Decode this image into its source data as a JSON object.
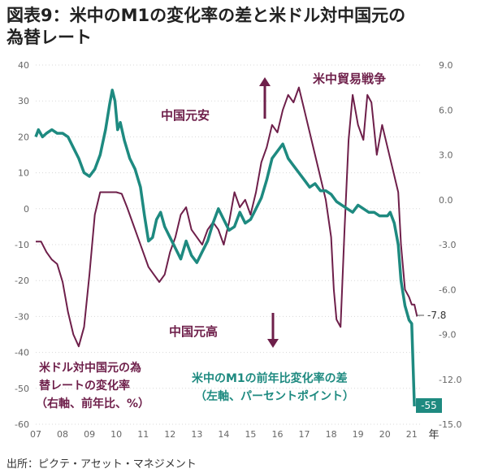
{
  "title_line1": "図表9：米中のM1の変化率の差と米ドル対中国元の",
  "title_line2": "為替レート",
  "source": "出所：ピクテ・アセット・マネジメント",
  "colors": {
    "m1": "#1e8a80",
    "fx": "#6e1f4a",
    "text_fx": "#6e1f4a",
    "text_m1": "#1e8a80"
  },
  "annotations": {
    "trade_war": "米中貿易戦争",
    "cny_weak": "中国元安",
    "cny_strong": "中国元高",
    "fx_label_1": "米ドル対中国元の為",
    "fx_label_2": "替レートの変化率",
    "fx_label_3": "（右軸、前年比、%）",
    "m1_label_1": "米中のM1の前年比変化率の差",
    "m1_label_2": "（左軸、パーセントポイント）",
    "fx_end": "-7.8",
    "m1_end": "-55",
    "year_unit": "年"
  },
  "chart_data": {
    "type": "line",
    "left_axis": {
      "ylim": [
        -60,
        40
      ],
      "ticks": [
        "40",
        "30",
        "20",
        "10",
        "0",
        "-10",
        "-20",
        "-30",
        "-40",
        "-50",
        "-60"
      ]
    },
    "right_axis": {
      "ylim": [
        -15,
        9
      ],
      "ticks": [
        "9.0",
        "6.0",
        "3.0",
        "0.0",
        "-3.0",
        "-6.0",
        "-9.0",
        "-12.0",
        "-15.0"
      ]
    },
    "x_ticks": [
      "07",
      "08",
      "09",
      "10",
      "11",
      "12",
      "13",
      "14",
      "15",
      "16",
      "17",
      "18",
      "19",
      "20",
      "21"
    ],
    "xlim": [
      2007.0,
      2021.4
    ],
    "series": [
      {
        "axis": "left",
        "x": [
          2007.0,
          2007.1,
          2007.25,
          2007.4,
          2007.6,
          2007.8,
          2008.0,
          2008.2,
          2008.4,
          2008.6,
          2008.8,
          2009.0,
          2009.2,
          2009.4,
          2009.6,
          2009.75,
          2009.85,
          2009.95,
          2010.05,
          2010.15,
          2010.3,
          2010.5,
          2010.7,
          2010.9,
          2011.05,
          2011.2,
          2011.35,
          2011.5,
          2011.65,
          2011.8,
          2012.0,
          2012.2,
          2012.4,
          2012.6,
          2012.8,
          2013.0,
          2013.2,
          2013.4,
          2013.6,
          2013.8,
          2014.0,
          2014.2,
          2014.4,
          2014.6,
          2014.8,
          2015.0,
          2015.2,
          2015.4,
          2015.6,
          2015.8,
          2016.0,
          2016.2,
          2016.4,
          2016.6,
          2016.8,
          2017.0,
          2017.2,
          2017.4,
          2017.6,
          2017.8,
          2018.0,
          2018.2,
          2018.4,
          2018.6,
          2018.8,
          2019.0,
          2019.2,
          2019.4,
          2019.6,
          2019.8,
          2020.0,
          2020.1,
          2020.2,
          2020.35,
          2020.5,
          2020.6,
          2020.75,
          2020.9,
          2021.0,
          2021.1
        ],
        "values": [
          20,
          22,
          20,
          21,
          22,
          21,
          21,
          20,
          17,
          14,
          10,
          9,
          11,
          15,
          22,
          29,
          33,
          30,
          22,
          24,
          19,
          14,
          11,
          6,
          -2,
          -9,
          -8,
          -3,
          -1,
          -5,
          -8,
          -11,
          -14,
          -9,
          -13,
          -15,
          -12,
          -9,
          -4,
          0,
          -3,
          -6,
          -5,
          -1,
          -4,
          -3,
          0,
          3,
          8,
          14,
          16,
          18,
          14,
          12,
          10,
          8,
          6,
          7,
          5,
          5,
          4,
          2,
          1,
          0,
          -1,
          1,
          0,
          -1,
          -1,
          -2,
          -2,
          -2,
          -1,
          -4,
          -10,
          -20,
          -27,
          -31,
          -32,
          -55
        ]
      },
      {
        "axis": "right",
        "x": [
          2007.0,
          2007.2,
          2007.4,
          2007.6,
          2007.8,
          2008.0,
          2008.2,
          2008.4,
          2008.6,
          2008.8,
          2009.0,
          2009.2,
          2009.4,
          2009.6,
          2009.8,
          2010.0,
          2010.2,
          2010.4,
          2010.6,
          2010.8,
          2011.0,
          2011.2,
          2011.4,
          2011.6,
          2011.8,
          2012.0,
          2012.2,
          2012.4,
          2012.6,
          2012.8,
          2013.0,
          2013.2,
          2013.4,
          2013.6,
          2013.8,
          2014.0,
          2014.2,
          2014.4,
          2014.6,
          2014.8,
          2015.0,
          2015.2,
          2015.4,
          2015.6,
          2015.8,
          2016.0,
          2016.2,
          2016.4,
          2016.6,
          2016.8,
          2017.0,
          2017.2,
          2017.4,
          2017.6,
          2017.8,
          2018.0,
          2018.1,
          2018.2,
          2018.35,
          2018.5,
          2018.65,
          2018.8,
          2019.0,
          2019.2,
          2019.35,
          2019.5,
          2019.7,
          2019.9,
          2020.1,
          2020.3,
          2020.5,
          2020.6,
          2020.75,
          2020.9,
          2021.0,
          2021.1,
          2021.2
        ],
        "values": [
          -2.8,
          -2.8,
          -3.5,
          -4.0,
          -4.3,
          -5.5,
          -7.5,
          -9.0,
          -9.8,
          -8.5,
          -5.0,
          -1.0,
          0.5,
          0.5,
          0.5,
          0.5,
          0.4,
          -0.5,
          -1.5,
          -2.5,
          -3.5,
          -4.5,
          -5.0,
          -5.5,
          -5.0,
          -3.5,
          -2.5,
          -1.0,
          -0.5,
          -2.0,
          -2.5,
          -3.0,
          -2.0,
          -1.5,
          -2.0,
          -3.0,
          -1.5,
          0.5,
          -0.5,
          0.0,
          -1.0,
          0.5,
          2.5,
          3.5,
          5.0,
          4.5,
          6.0,
          7.0,
          6.5,
          7.5,
          6.0,
          4.5,
          3.0,
          1.5,
          0.0,
          -2.5,
          -6.0,
          -8.0,
          -8.5,
          -2.0,
          4.0,
          7.0,
          5.0,
          4.0,
          7.0,
          6.5,
          3.0,
          5.0,
          3.5,
          2.0,
          0.5,
          -3.0,
          -6.0,
          -6.5,
          -7.0,
          -7.0,
          -7.8
        ]
      }
    ]
  }
}
